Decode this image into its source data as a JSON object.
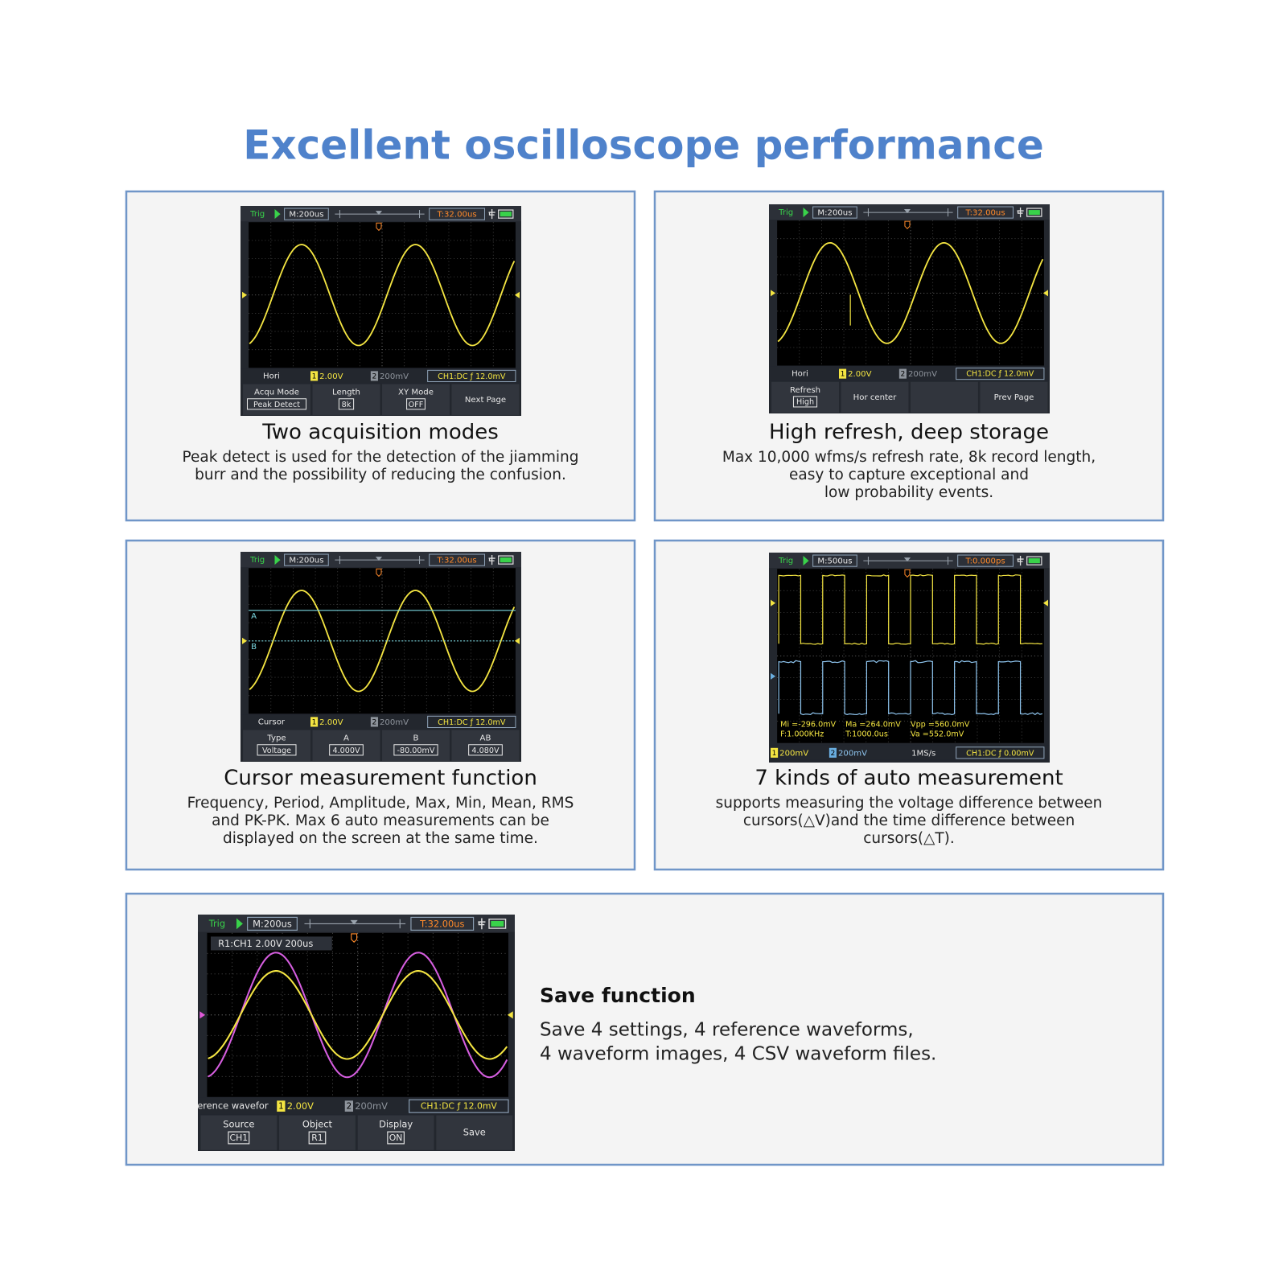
{
  "title": "Excellent oscilloscope performance",
  "panels": [
    {
      "screen": {
        "trig": "Trig",
        "timebase": "M:200us",
        "trigger_time": "T:32.00us",
        "status_label": "Hori",
        "ch1_number": "1",
        "ch1": "2.00V",
        "ch2_number": "2",
        "ch2": "200mV",
        "trigger_info": "CH1:DC ƒ 12.0mV",
        "menu": [
          {
            "label": "Acqu Mode",
            "value": "Peak Detect"
          },
          {
            "label": "Length",
            "value": "8k"
          },
          {
            "label": "XY Mode",
            "value": "OFF"
          },
          {
            "label": "Next Page"
          }
        ]
      },
      "heading": "Two acquisition modes",
      "description": [
        "Peak detect is used for the detection of the jiamming",
        "burr and the possibility of reducing the confusion."
      ]
    },
    {
      "screen": {
        "trig": "Trig",
        "timebase": "M:200us",
        "trigger_time": "T:32.00us",
        "status_label": "Hori",
        "ch1_number": "1",
        "ch1": "2.00V",
        "ch2_number": "2",
        "ch2": "200mV",
        "trigger_info": "CH1:DC ƒ 12.0mV",
        "menu": [
          {
            "label": "Refresh",
            "value": "High"
          },
          {
            "label": "Hor center"
          },
          null,
          {
            "label": "Prev Page"
          }
        ]
      },
      "heading": "High refresh, deep storage",
      "description": [
        "Max 10,000 wfms/s refresh rate, 8k record length,",
        "easy to capture exceptional and",
        "low probability events."
      ]
    },
    {
      "screen": {
        "trig": "Trig",
        "timebase": "M:200us",
        "trigger_time": "T:32.00us",
        "status_label": "Cursor",
        "ch1_number": "1",
        "ch1": "2.00V",
        "ch2_number": "2",
        "ch2": "200mV",
        "trigger_info": "CH1:DC ƒ 12.0mV",
        "cursors": [
          "A",
          "B"
        ],
        "menu": [
          {
            "label": "Type",
            "value": "Voltage"
          },
          {
            "label": "A",
            "value": "4.000V"
          },
          {
            "label": "B",
            "value": "-80.00mV"
          },
          {
            "label": "AB",
            "value": "4.080V"
          }
        ]
      },
      "heading": "Cursor measurement function",
      "description": [
        "Frequency, Period, Amplitude, Max, Min, Mean, RMS",
        "and PK-PK. Max 6 auto measurements can be",
        "displayed on the screen at the same time."
      ]
    },
    {
      "screen": {
        "trig": "Trig",
        "timebase": "M:500us",
        "trigger_time": "T:0.000ps",
        "ch1_number": "1",
        "ch1": "200mV",
        "ch2_number": "2",
        "ch2": "200mV",
        "sample_rate": "1MS/s",
        "trigger_info": "CH1:DC ƒ 0.00mV",
        "measurements": [
          [
            "Mi =-296.0mV",
            "Ma =264.0mV",
            "Vpp =560.0mV"
          ],
          [
            "F:1.000KHz",
            "T:1000.0us",
            "Va =552.0mV"
          ]
        ]
      },
      "heading": "7 kinds of auto measurement",
      "description": [
        "supports measuring the voltage difference between",
        "cursors(△V)and the time difference between",
        "cursors(△T)."
      ]
    },
    {
      "screen": {
        "trig": "Trig",
        "timebase": "M:200us",
        "trigger_time": "T:32.00us",
        "reference": "R1:CH1 2.00V 200us",
        "status_label": "erence wavefor",
        "ch1_number": "1",
        "ch1": "2.00V",
        "ch2_number": "2",
        "ch2": "200mV",
        "trigger_info": "CH1:DC ƒ 12.0mV",
        "menu": [
          {
            "label": "Source",
            "value": "CH1"
          },
          {
            "label": "Object",
            "value": "R1"
          },
          {
            "label": "Display",
            "value": "ON"
          },
          {
            "label": "Save"
          }
        ]
      },
      "heading": "Save function",
      "description": [
        "Save 4 settings, 4 reference waveforms,",
        "4 waveform images, 4 CSV waveform files."
      ]
    }
  ]
}
